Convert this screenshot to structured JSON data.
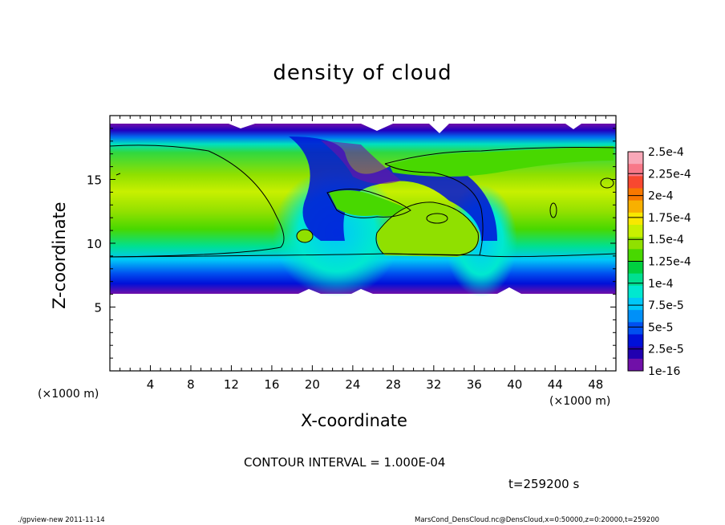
{
  "chart_data": {
    "type": "heatmap",
    "title": "density of cloud",
    "xlabel": "X-coordinate",
    "ylabel": "Z-coordinate",
    "x_unit": "(×1000 m)",
    "xlim": [
      0,
      50
    ],
    "ylim": [
      0,
      20
    ],
    "xticks": [
      4,
      8,
      12,
      16,
      20,
      24,
      28,
      32,
      36,
      40,
      44,
      48
    ],
    "yticks": [
      5,
      10,
      15
    ],
    "contour_interval": "CONTOUR INTERVAL = 1.000E-04",
    "time": "t=259200 s",
    "colorbar": {
      "labels": [
        "2.5e-4",
        "2.25e-4",
        "2e-4",
        "1.75e-4",
        "1.5e-4",
        "1.25e-4",
        "1e-4",
        "7.5e-5",
        "5e-5",
        "2.5e-5",
        "1e-16"
      ],
      "colors": [
        "#f8a8b8",
        "#f87888",
        "#f84830",
        "#f87800",
        "#f8b000",
        "#f8e800",
        "#c8f000",
        "#90e000",
        "#48d800",
        "#00d040",
        "#00e090",
        "#00e8d0",
        "#00c8f8",
        "#0090f8",
        "#0050f0",
        "#0010d8",
        "#2000b0",
        "#7010a8"
      ]
    },
    "cloud_layer_z": [
      6.3,
      19.4
    ]
  },
  "footer": {
    "left": "./gpview-new   2011-11-14",
    "right": "MarsCond_DensCloud.nc@DensCloud,x=0:50000,z=0:20000,t=259200"
  }
}
